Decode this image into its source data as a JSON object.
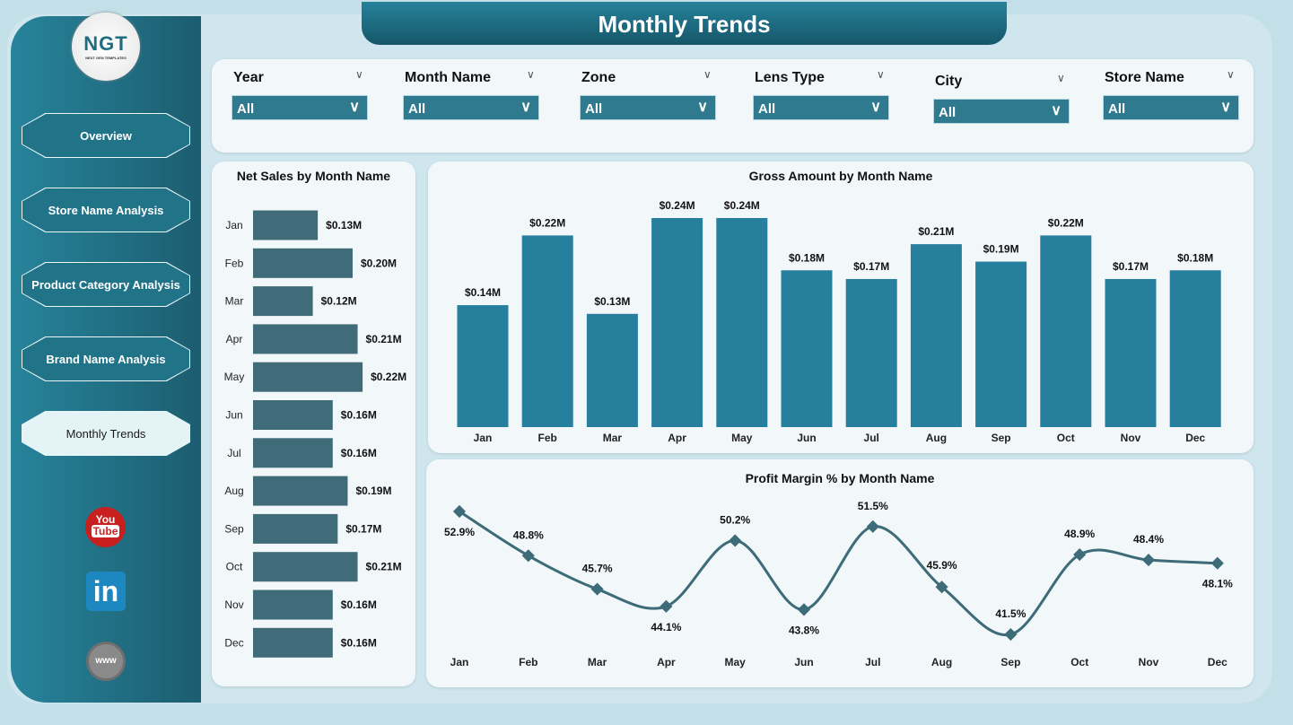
{
  "header": {
    "title": "Monthly Trends"
  },
  "logo": {
    "text": "NGT",
    "subtitle": "NEXT GEN TEMPLATES"
  },
  "sidebar": {
    "items": [
      {
        "label": "Overview",
        "active": false
      },
      {
        "label": "Store Name Analysis",
        "active": false
      },
      {
        "label": "Product Category Analysis",
        "active": false
      },
      {
        "label": "Brand Name Analysis",
        "active": false
      },
      {
        "label": "Monthly Trends",
        "active": true
      }
    ],
    "social": [
      "youtube-icon",
      "linkedin-icon",
      "website-icon"
    ]
  },
  "filters": [
    {
      "label": "Year",
      "value": "All"
    },
    {
      "label": "Month Name",
      "value": "All"
    },
    {
      "label": "Zone",
      "value": "All"
    },
    {
      "label": "Lens Type",
      "value": "All"
    },
    {
      "label": "City",
      "value": "All"
    },
    {
      "label": "Store Name",
      "value": "All"
    }
  ],
  "colors": {
    "accent": "#2a7f9b",
    "bar_dark": "#3f6c78",
    "line": "#3d6b78",
    "sidebar": "#217388"
  },
  "chart_data": [
    {
      "type": "bar",
      "orientation": "horizontal",
      "title": "Net Sales by Month Name",
      "categories": [
        "Jan",
        "Feb",
        "Mar",
        "Apr",
        "May",
        "Jun",
        "Jul",
        "Aug",
        "Sep",
        "Oct",
        "Nov",
        "Dec"
      ],
      "values": [
        0.13,
        0.2,
        0.12,
        0.21,
        0.22,
        0.16,
        0.16,
        0.19,
        0.17,
        0.21,
        0.16,
        0.16
      ],
      "labels": [
        "$0.13M",
        "$0.20M",
        "$0.12M",
        "$0.21M",
        "$0.22M",
        "$0.16M",
        "$0.16M",
        "$0.19M",
        "$0.17M",
        "$0.21M",
        "$0.16M",
        "$0.16M"
      ],
      "unit": "$M"
    },
    {
      "type": "bar",
      "title": "Gross Amount by Month Name",
      "categories": [
        "Jan",
        "Feb",
        "Mar",
        "Apr",
        "May",
        "Jun",
        "Jul",
        "Aug",
        "Sep",
        "Oct",
        "Nov",
        "Dec"
      ],
      "values": [
        0.14,
        0.22,
        0.13,
        0.24,
        0.24,
        0.18,
        0.17,
        0.21,
        0.19,
        0.22,
        0.17,
        0.18
      ],
      "labels": [
        "$0.14M",
        "$0.22M",
        "$0.13M",
        "$0.24M",
        "$0.24M",
        "$0.18M",
        "$0.17M",
        "$0.21M",
        "$0.19M",
        "$0.22M",
        "$0.17M",
        "$0.18M"
      ],
      "unit": "$M"
    },
    {
      "type": "line",
      "title": "Profit Margin % by Month Name",
      "categories": [
        "Jan",
        "Feb",
        "Mar",
        "Apr",
        "May",
        "Jun",
        "Jul",
        "Aug",
        "Sep",
        "Oct",
        "Nov",
        "Dec"
      ],
      "values": [
        52.9,
        48.8,
        45.7,
        44.1,
        50.2,
        43.8,
        51.5,
        45.9,
        41.5,
        48.9,
        48.4,
        48.1
      ],
      "labels": [
        "52.9%",
        "48.8%",
        "45.7%",
        "44.1%",
        "50.2%",
        "43.8%",
        "51.5%",
        "45.9%",
        "41.5%",
        "48.9%",
        "48.4%",
        "48.1%"
      ],
      "unit": "%"
    }
  ]
}
